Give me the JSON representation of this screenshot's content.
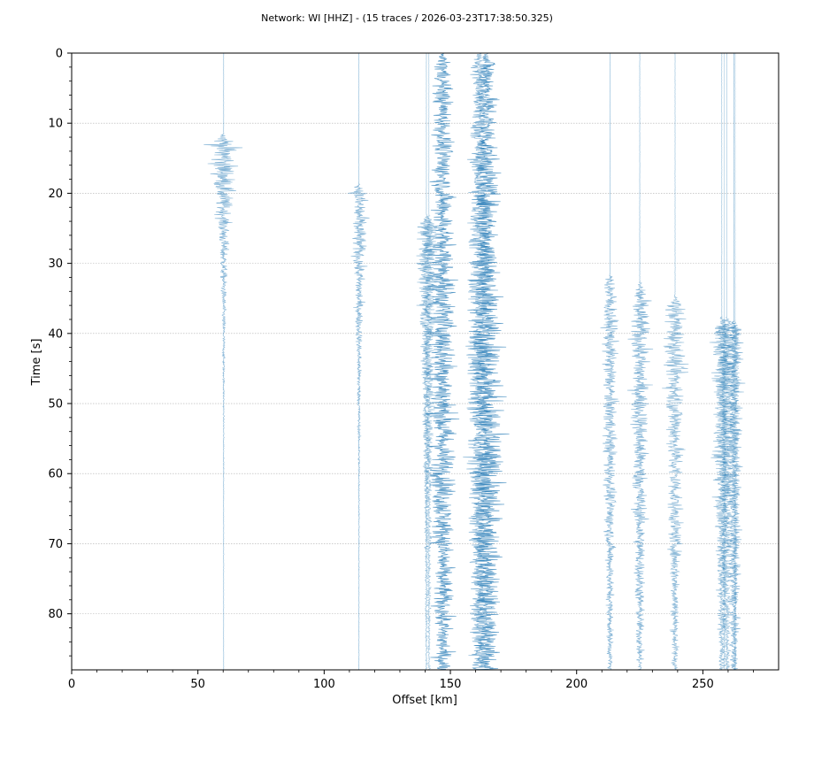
{
  "chart_data": {
    "type": "seismic-section",
    "title": "Network: WI [HHZ] - (15 traces / 2026-03-23T17:38:50.325)",
    "xlabel": "Offset [km]",
    "ylabel": "Time [s]",
    "xlim": [
      0,
      280
    ],
    "ylim": [
      88,
      0
    ],
    "x_ticks": [
      0,
      50,
      100,
      150,
      200,
      250
    ],
    "x_tick_labels": [
      "0",
      "50",
      "100",
      "150",
      "200",
      "250"
    ],
    "y_ticks": [
      0,
      10,
      20,
      30,
      40,
      50,
      60,
      70,
      80
    ],
    "y_tick_labels": [
      "0",
      "10",
      "20",
      "30",
      "40",
      "50",
      "60",
      "70",
      "80"
    ],
    "grid": "horizontal",
    "line_color": "#1f77b4",
    "traces": [
      {
        "offset": 60.2,
        "onset": 11.5,
        "peak_amp": 12,
        "peak_time": 16,
        "decay": 0.08,
        "noise": 0.3,
        "alpha": 0.55
      },
      {
        "offset": 113.8,
        "onset": 18.5,
        "peak_amp": 8,
        "peak_time": 34,
        "decay": 0.06,
        "noise": 0.3,
        "alpha": 0.55
      },
      {
        "offset": 140.5,
        "onset": 23.0,
        "peak_amp": 9,
        "peak_time": 44,
        "decay": 0.04,
        "noise": 0.4,
        "alpha": 0.5
      },
      {
        "offset": 141.5,
        "onset": 23.0,
        "peak_amp": 8,
        "peak_time": 50,
        "decay": 0.03,
        "noise": 0.4,
        "alpha": 0.45
      },
      {
        "offset": 147.0,
        "onset": 0.0,
        "peak_amp": 10,
        "peak_time": 45,
        "decay": 0.0,
        "noise": 4,
        "alpha": 0.75
      },
      {
        "offset": 161.5,
        "onset": 0.0,
        "peak_amp": 9,
        "peak_time": 40,
        "decay": 0.0,
        "noise": 4,
        "alpha": 0.6
      },
      {
        "offset": 164.5,
        "onset": 0.0,
        "peak_amp": 12,
        "peak_time": 50,
        "decay": 0.0,
        "noise": 4,
        "alpha": 0.75
      },
      {
        "offset": 213.2,
        "onset": 31.5,
        "peak_amp": 8,
        "peak_time": 61,
        "decay": 0.02,
        "noise": 0.4,
        "alpha": 0.55
      },
      {
        "offset": 225.0,
        "onset": 32.5,
        "peak_amp": 10,
        "peak_time": 60,
        "decay": 0.02,
        "noise": 0.5,
        "alpha": 0.55
      },
      {
        "offset": 239.0,
        "onset": 34.5,
        "peak_amp": 10,
        "peak_time": 58,
        "decay": 0.02,
        "noise": 0.5,
        "alpha": 0.5
      },
      {
        "offset": 257.5,
        "onset": 37.5,
        "peak_amp": 9,
        "peak_time": 60,
        "decay": 0.02,
        "noise": 0.5,
        "alpha": 0.5
      },
      {
        "offset": 259.5,
        "onset": 37.5,
        "peak_amp": 9,
        "peak_time": 55,
        "decay": 0.02,
        "noise": 0.4,
        "alpha": 0.45
      },
      {
        "offset": 262.3,
        "onset": 38.0,
        "peak_amp": 9,
        "peak_time": 65,
        "decay": 0.02,
        "noise": 0.5,
        "alpha": 0.55
      },
      {
        "offset": 262.8,
        "onset": 38.0,
        "peak_amp": 5,
        "peak_time": 50,
        "decay": 0.03,
        "noise": 0.4,
        "alpha": 0.4
      },
      {
        "offset": 258.5,
        "onset": 38.0,
        "peak_amp": 4,
        "peak_time": 72,
        "decay": 0.03,
        "noise": 0.4,
        "alpha": 0.4
      }
    ]
  }
}
